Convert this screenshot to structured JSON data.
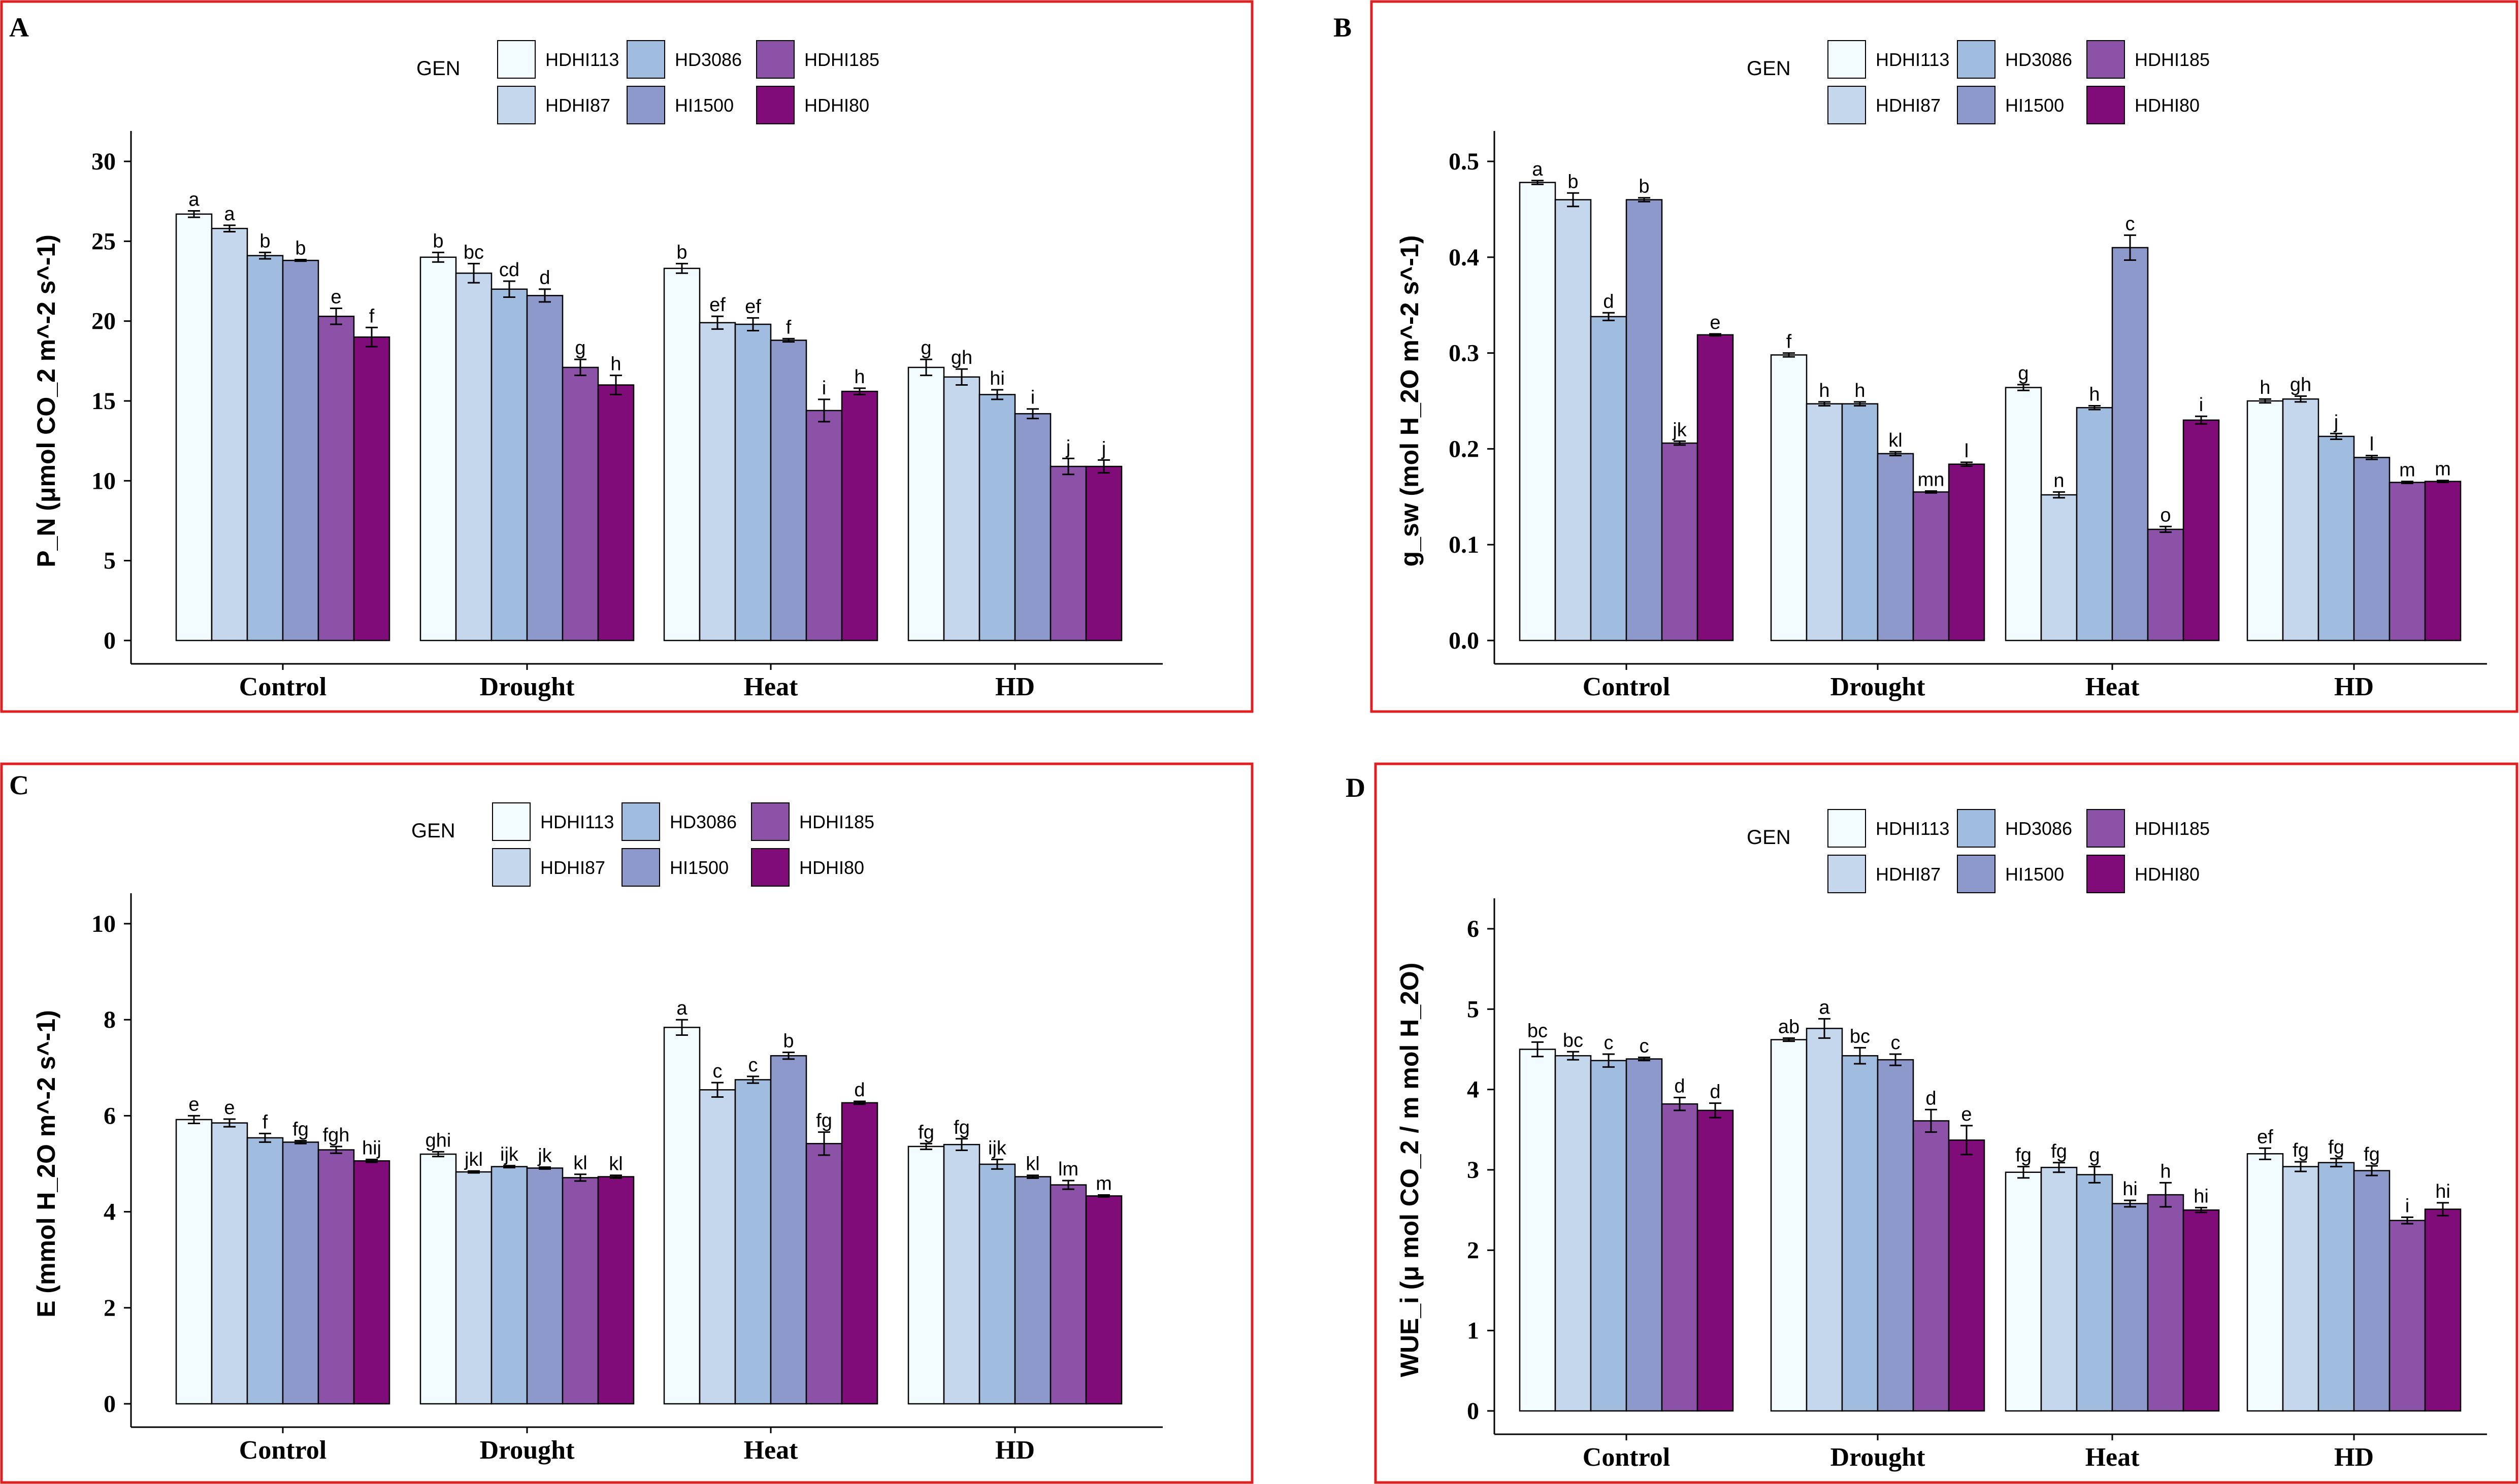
{
  "legend": {
    "title": "GEN",
    "entries": [
      {
        "name": "HDHI113",
        "color": "#F2FBFE"
      },
      {
        "name": "HDHI87",
        "color": "#C5D7EC"
      },
      {
        "name": "HD3086",
        "color": "#A0BDDF"
      },
      {
        "name": "HI1500",
        "color": "#8D98CB"
      },
      {
        "name": "HDHI185",
        "color": "#8B52A8"
      },
      {
        "name": "HDHI80",
        "color": "#800C7A"
      }
    ]
  },
  "chart_data": [
    {
      "panel": "A",
      "type": "bar",
      "title": "",
      "xlabel": "",
      "ylabel": "P_N (μmol CO_2 m^-2 s^-1)",
      "ylim": [
        0,
        30
      ],
      "yticks": [
        0,
        5,
        10,
        15,
        20,
        25,
        30
      ],
      "categories": [
        "Control",
        "Drought",
        "Heat",
        "HD"
      ],
      "series": [
        {
          "name": "HDHI113",
          "values": [
            26.7,
            24.0,
            23.3,
            17.1
          ],
          "errors": [
            0.2,
            0.3,
            0.3,
            0.5
          ],
          "labels": [
            "a",
            "b",
            "b",
            "g"
          ]
        },
        {
          "name": "HDHI87",
          "values": [
            25.8,
            23.0,
            19.9,
            16.5
          ],
          "errors": [
            0.2,
            0.6,
            0.4,
            0.5
          ],
          "labels": [
            "a",
            "bc",
            "ef",
            "gh"
          ]
        },
        {
          "name": "HD3086",
          "values": [
            24.1,
            22.0,
            19.8,
            15.4
          ],
          "errors": [
            0.2,
            0.5,
            0.4,
            0.3
          ],
          "labels": [
            "b",
            "cd",
            "ef",
            "hi"
          ]
        },
        {
          "name": "HI1500",
          "values": [
            23.8,
            21.6,
            18.8,
            14.2
          ],
          "errors": [
            0.05,
            0.4,
            0.1,
            0.3
          ],
          "labels": [
            "b",
            "d",
            "f",
            "i"
          ]
        },
        {
          "name": "HDHI185",
          "values": [
            20.3,
            17.1,
            14.4,
            10.9
          ],
          "errors": [
            0.5,
            0.5,
            0.7,
            0.5
          ],
          "labels": [
            "e",
            "g",
            "i",
            "j"
          ]
        },
        {
          "name": "HDHI80",
          "values": [
            19.0,
            16.0,
            15.6,
            10.9
          ],
          "errors": [
            0.6,
            0.6,
            0.2,
            0.4
          ],
          "labels": [
            "f",
            "h",
            "h",
            "j"
          ]
        }
      ]
    },
    {
      "panel": "B",
      "type": "bar",
      "title": "",
      "xlabel": "",
      "ylabel": "g_sw (mol H_2O m^-2 s^-1)",
      "ylim": [
        0,
        0.5
      ],
      "yticks": [
        0.0,
        0.1,
        0.2,
        0.3,
        0.4,
        0.5
      ],
      "categories": [
        "Control",
        "Drought",
        "Heat",
        "HD"
      ],
      "series": [
        {
          "name": "HDHI113",
          "values": [
            0.478,
            0.298,
            0.264,
            0.25
          ],
          "errors": [
            0.002,
            0.002,
            0.003,
            0.002
          ],
          "labels": [
            "a",
            "f",
            "g",
            "h"
          ]
        },
        {
          "name": "HDHI87",
          "values": [
            0.46,
            0.247,
            0.152,
            0.252
          ],
          "errors": [
            0.007,
            0.002,
            0.003,
            0.003
          ],
          "labels": [
            "b",
            "h",
            "n",
            "gh"
          ]
        },
        {
          "name": "HD3086",
          "values": [
            0.338,
            0.247,
            0.243,
            0.213
          ],
          "errors": [
            0.004,
            0.002,
            0.002,
            0.003
          ],
          "labels": [
            "d",
            "h",
            "h",
            "j"
          ]
        },
        {
          "name": "HI1500",
          "values": [
            0.46,
            0.195,
            0.41,
            0.191
          ],
          "errors": [
            0.002,
            0.002,
            0.013,
            0.002
          ],
          "labels": [
            "b",
            "kl",
            "c",
            "l"
          ]
        },
        {
          "name": "HDHI185",
          "values": [
            0.206,
            0.155,
            0.116,
            0.165
          ],
          "errors": [
            0.002,
            0.001,
            0.003,
            0.001
          ],
          "labels": [
            "jk",
            "mn",
            "o",
            "m"
          ]
        },
        {
          "name": "HDHI80",
          "values": [
            0.319,
            0.184,
            0.23,
            0.166
          ],
          "errors": [
            0.001,
            0.002,
            0.004,
            0.001
          ],
          "labels": [
            "e",
            "l",
            "i",
            "m"
          ]
        }
      ]
    },
    {
      "panel": "C",
      "type": "bar",
      "title": "",
      "xlabel": "",
      "ylabel": "E (mmol H_2O m^-2 s^-1)",
      "ylim": [
        0,
        10
      ],
      "yticks": [
        0,
        2,
        4,
        6,
        8,
        10
      ],
      "categories": [
        "Control",
        "Drought",
        "Heat",
        "HD"
      ],
      "series": [
        {
          "name": "HDHI113",
          "values": [
            5.92,
            5.2,
            7.84,
            5.36
          ],
          "errors": [
            0.08,
            0.05,
            0.16,
            0.06
          ],
          "labels": [
            "e",
            "ghi",
            "a",
            "fg"
          ]
        },
        {
          "name": "HDHI87",
          "values": [
            5.85,
            4.83,
            6.54,
            5.4
          ],
          "errors": [
            0.08,
            0.02,
            0.15,
            0.12
          ],
          "labels": [
            "e",
            "jkl",
            "c",
            "fg"
          ]
        },
        {
          "name": "HD3086",
          "values": [
            5.54,
            4.94,
            6.75,
            4.99
          ],
          "errors": [
            0.09,
            0.02,
            0.07,
            0.1
          ],
          "labels": [
            "f",
            "ijk",
            "c",
            "ijk"
          ]
        },
        {
          "name": "HI1500",
          "values": [
            5.45,
            4.91,
            7.25,
            4.73
          ],
          "errors": [
            0.03,
            0.02,
            0.07,
            0.03
          ],
          "labels": [
            "fg",
            "jk",
            "b",
            "kl"
          ]
        },
        {
          "name": "HDHI185",
          "values": [
            5.29,
            4.71,
            5.42,
            4.56
          ],
          "errors": [
            0.07,
            0.07,
            0.24,
            0.09
          ],
          "labels": [
            "fgh",
            "kl",
            "fg",
            "lm"
          ]
        },
        {
          "name": "HDHI80",
          "values": [
            5.06,
            4.73,
            6.27,
            4.33
          ],
          "errors": [
            0.03,
            0.03,
            0.03,
            0.02
          ],
          "labels": [
            "hij",
            "kl",
            "d",
            "m"
          ]
        }
      ]
    },
    {
      "panel": "D",
      "type": "bar",
      "title": "",
      "xlabel": "",
      "ylabel": "WUE_i (μ mol CO_2 / m mol H_2O)",
      "ylim": [
        0,
        6
      ],
      "yticks": [
        0,
        1,
        2,
        3,
        4,
        5,
        6
      ],
      "categories": [
        "Control",
        "Drought",
        "Heat",
        "HD"
      ],
      "series": [
        {
          "name": "HDHI113",
          "values": [
            4.5,
            4.62,
            2.97,
            3.2
          ],
          "errors": [
            0.09,
            0.02,
            0.07,
            0.07
          ],
          "labels": [
            "bc",
            "ab",
            "fg",
            "ef"
          ]
        },
        {
          "name": "HDHI87",
          "values": [
            4.42,
            4.76,
            3.03,
            3.04
          ],
          "errors": [
            0.05,
            0.12,
            0.06,
            0.06
          ],
          "labels": [
            "bc",
            "a",
            "fg",
            "fg"
          ]
        },
        {
          "name": "HD3086",
          "values": [
            4.36,
            4.42,
            2.94,
            3.09
          ],
          "errors": [
            0.08,
            0.1,
            0.1,
            0.05
          ],
          "labels": [
            "c",
            "bc",
            "g",
            "fg"
          ]
        },
        {
          "name": "HI1500",
          "values": [
            4.38,
            4.37,
            2.58,
            2.99
          ],
          "errors": [
            0.02,
            0.07,
            0.04,
            0.06
          ],
          "labels": [
            "c",
            "c",
            "hi",
            "fg"
          ]
        },
        {
          "name": "HDHI185",
          "values": [
            3.82,
            3.61,
            2.69,
            2.37
          ],
          "errors": [
            0.08,
            0.14,
            0.15,
            0.04
          ],
          "labels": [
            "d",
            "d",
            "h",
            "i"
          ]
        },
        {
          "name": "HDHI80",
          "values": [
            3.74,
            3.37,
            2.5,
            2.51
          ],
          "errors": [
            0.09,
            0.18,
            0.03,
            0.08
          ],
          "labels": [
            "d",
            "e",
            "hi",
            "hi"
          ]
        }
      ]
    }
  ]
}
